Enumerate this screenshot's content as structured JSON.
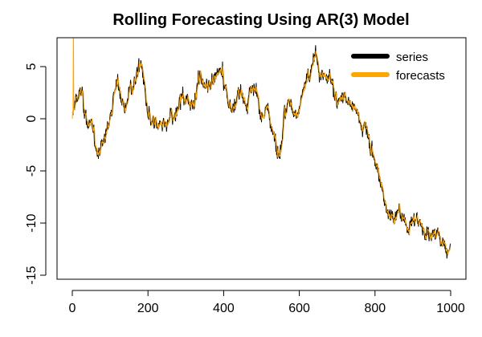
{
  "chart_data": {
    "type": "line",
    "title": "Rolling Forecasting Using AR(3) Model",
    "xlabel": "",
    "ylabel": "",
    "xlim": [
      0,
      1000
    ],
    "ylim": [
      -15,
      7
    ],
    "x_ticks": [
      0,
      200,
      400,
      600,
      800,
      1000
    ],
    "y_ticks": [
      -15,
      -10,
      -5,
      0,
      5
    ],
    "grid": false,
    "legend_position": "top-right",
    "series": [
      {
        "name": "series",
        "color": "#000000",
        "n": 1000,
        "anchors": [
          [
            0,
            0.0
          ],
          [
            10,
            2.0
          ],
          [
            20,
            2.5
          ],
          [
            30,
            1.5
          ],
          [
            40,
            -0.5
          ],
          [
            50,
            -1.0
          ],
          [
            60,
            -2.5
          ],
          [
            70,
            -3.0
          ],
          [
            80,
            -2.5
          ],
          [
            90,
            -1.5
          ],
          [
            100,
            0.5
          ],
          [
            110,
            2.5
          ],
          [
            120,
            3.5
          ],
          [
            130,
            2.0
          ],
          [
            140,
            1.0
          ],
          [
            150,
            2.5
          ],
          [
            160,
            3.0
          ],
          [
            170,
            4.0
          ],
          [
            180,
            5.5
          ],
          [
            190,
            3.5
          ],
          [
            200,
            0.0
          ],
          [
            210,
            -1.0
          ],
          [
            220,
            -0.5
          ],
          [
            230,
            -1.5
          ],
          [
            240,
            0.0
          ],
          [
            250,
            -1.0
          ],
          [
            260,
            0.5
          ],
          [
            270,
            0.0
          ],
          [
            280,
            1.0
          ],
          [
            290,
            2.0
          ],
          [
            300,
            1.0
          ],
          [
            310,
            1.5
          ],
          [
            320,
            2.0
          ],
          [
            330,
            3.5
          ],
          [
            340,
            4.0
          ],
          [
            350,
            3.0
          ],
          [
            360,
            3.5
          ],
          [
            370,
            4.0
          ],
          [
            380,
            3.5
          ],
          [
            390,
            4.5
          ],
          [
            400,
            3.5
          ],
          [
            410,
            2.0
          ],
          [
            420,
            1.0
          ],
          [
            430,
            1.5
          ],
          [
            440,
            2.5
          ],
          [
            450,
            2.0
          ],
          [
            460,
            1.5
          ],
          [
            470,
            3.0
          ],
          [
            480,
            2.5
          ],
          [
            490,
            1.5
          ],
          [
            500,
            0.0
          ],
          [
            510,
            1.0
          ],
          [
            520,
            0.5
          ],
          [
            530,
            -1.5
          ],
          [
            540,
            -3.0
          ],
          [
            550,
            -2.0
          ],
          [
            560,
            0.5
          ],
          [
            570,
            2.5
          ],
          [
            580,
            1.0
          ],
          [
            590,
            0.5
          ],
          [
            600,
            1.5
          ],
          [
            610,
            2.5
          ],
          [
            620,
            3.5
          ],
          [
            630,
            4.0
          ],
          [
            640,
            6.0
          ],
          [
            650,
            5.5
          ],
          [
            660,
            4.5
          ],
          [
            670,
            3.5
          ],
          [
            680,
            4.0
          ],
          [
            690,
            2.5
          ],
          [
            700,
            2.0
          ],
          [
            710,
            2.5
          ],
          [
            720,
            2.0
          ],
          [
            730,
            1.5
          ],
          [
            740,
            1.0
          ],
          [
            750,
            0.5
          ],
          [
            760,
            0.0
          ],
          [
            770,
            -0.5
          ],
          [
            780,
            -1.5
          ],
          [
            790,
            -3.0
          ],
          [
            800,
            -4.0
          ],
          [
            810,
            -5.5
          ],
          [
            820,
            -7.0
          ],
          [
            830,
            -8.5
          ],
          [
            840,
            -9.0
          ],
          [
            850,
            -9.5
          ],
          [
            860,
            -9.0
          ],
          [
            870,
            -9.5
          ],
          [
            880,
            -10.0
          ],
          [
            890,
            -10.0
          ],
          [
            900,
            -9.5
          ],
          [
            910,
            -9.5
          ],
          [
            920,
            -10.0
          ],
          [
            930,
            -10.5
          ],
          [
            940,
            -10.5
          ],
          [
            950,
            -11.0
          ],
          [
            960,
            -11.0
          ],
          [
            970,
            -11.5
          ],
          [
            980,
            -12.0
          ],
          [
            990,
            -12.5
          ],
          [
            999,
            -12.5
          ]
        ]
      },
      {
        "name": "forecasts",
        "color": "#FFA500",
        "n": 1000,
        "start_spike": [
          3,
          9.0
        ],
        "tracks": "series"
      }
    ]
  }
}
